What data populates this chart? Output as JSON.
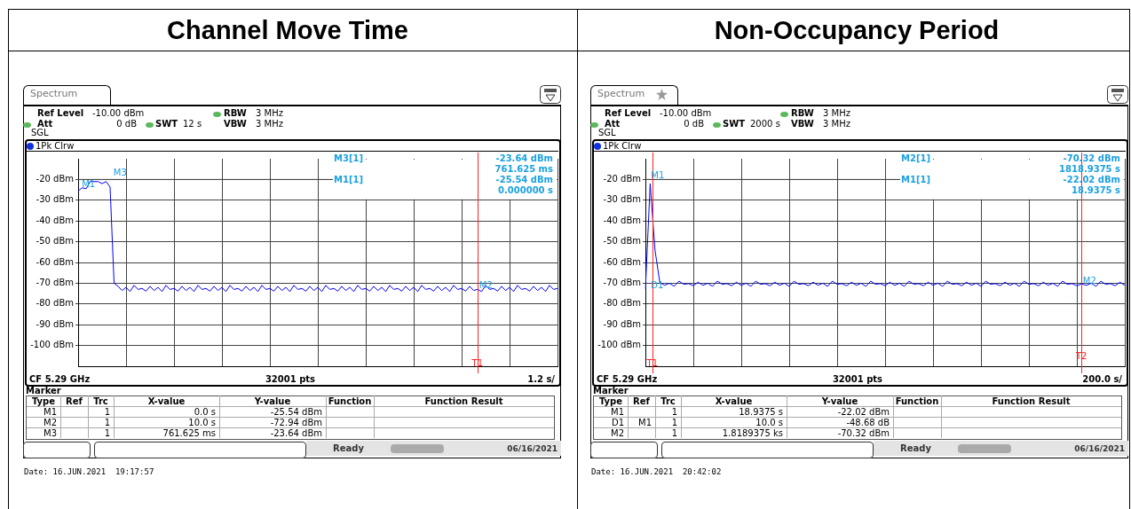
{
  "chart_data": [
    {
      "type": "line",
      "title": "Channel Move Time",
      "color": "#0000ff",
      "categories": [
        null,
        null,
        null,
        null,
        null,
        null,
        null,
        null,
        null,
        null,
        null,
        null,
        null,
        null,
        null,
        null,
        null,
        null,
        null,
        null,
        null,
        null,
        null,
        null,
        null,
        null,
        null,
        null,
        null,
        null,
        null,
        null,
        null,
        null,
        null,
        null,
        null,
        null,
        null,
        null,
        null,
        null,
        null,
        null,
        null,
        null,
        null,
        null,
        null,
        null,
        null,
        null,
        null,
        null,
        null,
        null,
        null,
        null,
        null,
        null,
        null,
        null,
        null,
        null,
        null,
        null,
        null,
        null,
        null,
        null,
        null,
        null,
        null,
        null,
        null,
        null,
        null,
        null,
        null,
        null,
        null,
        null,
        null,
        null,
        null,
        null,
        null,
        null,
        null,
        null,
        null,
        null,
        null,
        null,
        null,
        null,
        null,
        null,
        null,
        null,
        null,
        null,
        null,
        null,
        null,
        null,
        null,
        null,
        null,
        null,
        null,
        null,
        null,
        null,
        null,
        null,
        null,
        null,
        null,
        null,
        null
      ],
      "values": [
        -25.54,
        -24,
        -24.5,
        -21,
        -21,
        -21,
        -22,
        -21,
        -23.64,
        -70,
        -71.5,
        -73.5,
        -72,
        -74,
        -71,
        -73,
        -72.5,
        -73.8,
        -71.5,
        -73.5,
        -72,
        -74,
        -71,
        -73,
        -72.5,
        -73.8,
        -71.5,
        -73.5,
        -72,
        -74,
        -71,
        -73,
        -72.5,
        -73.8,
        -71.5,
        -73.5,
        -72,
        -74,
        -71,
        -73,
        -72.5,
        -73.8,
        -71.5,
        -73.5,
        -72,
        -74,
        -71,
        -73,
        -72.5,
        -73.8,
        -71.5,
        -73.5,
        -72,
        -74,
        -71,
        -73,
        -72.5,
        -73.8,
        -71.5,
        -73.5,
        -72,
        -74,
        -71,
        -73,
        -72.5,
        -73.8,
        -71.5,
        -73.5,
        -72,
        -74,
        -71,
        -73,
        -72.5,
        -73.8,
        -71.5,
        -73.5,
        -72,
        -74,
        -71,
        -73,
        -72.5,
        -73.8,
        -71.5,
        -73.5,
        -72,
        -74,
        -71,
        -73,
        -72.5,
        -73.8,
        -71.5,
        -73.5,
        -72,
        -74,
        -71,
        -73,
        -72.5,
        -73.8,
        -71.5,
        -73.5,
        -72.94,
        -74,
        -71,
        -73,
        -72.5,
        -73.8,
        -71.5,
        -73.5,
        -72,
        -74,
        -71,
        -73,
        -72.5,
        -73.8,
        -71.5,
        -73.5,
        -72,
        -74,
        -71,
        -73,
        -72.5
      ],
      "ylim": [
        -110,
        -10
      ],
      "yticks": [
        {
          "value": -20,
          "label": "-20 dBm"
        },
        {
          "value": -30,
          "label": "-30 dBm"
        },
        {
          "value": -40,
          "label": "-40 dBm"
        },
        {
          "value": -50,
          "label": "-50 dBm"
        },
        {
          "value": -60,
          "label": "-60 dBm"
        },
        {
          "value": -70,
          "label": "-70 dBm"
        },
        {
          "value": -80,
          "label": "-80 dBm"
        },
        {
          "value": -90,
          "label": "-90 dBm"
        },
        {
          "value": -100,
          "label": "-100 dBm"
        }
      ],
      "grid": true,
      "tick_labels": "y",
      "annotations": [
        "Spectrum",
        "Ref Level",
        "-10.00 dBm",
        "Att",
        "0 dB",
        "SWT",
        "12 s",
        "RBW",
        "3 MHz",
        "VBW",
        "3 MHz",
        "SGL",
        "1Pk Clrw",
        "M3[1]",
        "-23.64 dBm",
        "761.625 ms",
        "M1[1]",
        "-25.54 dBm",
        "0.000000 s",
        "CF 5.29 GHz",
        "32001 pts",
        "1.2 s/",
        "Marker",
        "Type",
        "Ref",
        "Trc",
        "X-value",
        "Y-value",
        "Function",
        "Function Result",
        "M1",
        "1",
        "0.0 s",
        "-25.54 dBm",
        "M2",
        "1",
        "10.0 s",
        "-72.94 dBm",
        "M3",
        "1",
        "761.625 ms",
        "-23.64 dBm",
        "Ready",
        "06/16/2021",
        "Date: 16.JUN.2021  19:17:57",
        "M1",
        "M2",
        "M3",
        "T1"
      ]
    },
    {
      "type": "line",
      "title": "Non-Occupancy Period",
      "color": "#0000ff",
      "categories": [
        null,
        null,
        null,
        null,
        null,
        null,
        null,
        null,
        null,
        null,
        null,
        null,
        null,
        null,
        null,
        null,
        null,
        null,
        null,
        null,
        null,
        null,
        null,
        null,
        null,
        null,
        null,
        null,
        null,
        null,
        null,
        null,
        null,
        null,
        null,
        null,
        null,
        null,
        null,
        null,
        null,
        null,
        null,
        null,
        null,
        null,
        null,
        null,
        null,
        null,
        null,
        null,
        null,
        null,
        null,
        null,
        null,
        null,
        null,
        null,
        null,
        null,
        null,
        null,
        null,
        null,
        null,
        null,
        null,
        null,
        null,
        null,
        null,
        null,
        null,
        null,
        null,
        null,
        null,
        null,
        null,
        null,
        null,
        null,
        null,
        null,
        null,
        null,
        null,
        null,
        null,
        null,
        null,
        null,
        null,
        null,
        null,
        null,
        null,
        null,
        null
      ],
      "values": [
        -73,
        -22.02,
        -54,
        -69.5,
        -71,
        -70,
        -71.5,
        -69,
        -70.5,
        -70.2,
        -71.2,
        -69.5,
        -71,
        -70,
        -71.5,
        -69,
        -70.5,
        -70.2,
        -71.2,
        -69.5,
        -71,
        -70,
        -71.5,
        -69,
        -70.5,
        -70.2,
        -71.2,
        -69.5,
        -71,
        -70,
        -71.5,
        -69,
        -70.5,
        -70.2,
        -71.2,
        -69.5,
        -71,
        -70,
        -71.5,
        -69,
        -70.5,
        -70.2,
        -71.2,
        -69.5,
        -71,
        -70,
        -71.5,
        -69,
        -70.5,
        -70.2,
        -71.2,
        -69.5,
        -71,
        -70,
        -71.5,
        -69,
        -70.5,
        -70.2,
        -71.2,
        -69.5,
        -71,
        -70,
        -71.5,
        -69,
        -70.5,
        -70.2,
        -71.2,
        -69.5,
        -71,
        -70,
        -71.5,
        -69,
        -70.5,
        -70.2,
        -71.2,
        -69.5,
        -71,
        -70,
        -71.5,
        -69,
        -70.5,
        -70.2,
        -71.2,
        -69.5,
        -71,
        -70,
        -71.5,
        -69,
        -70.5,
        -70.2,
        -71.2,
        -70.32,
        -71,
        -70,
        -71.5,
        -69,
        -70.5,
        -70.2,
        -71.2,
        -69.5,
        -71
      ],
      "ylim": [
        -110,
        -10
      ],
      "yticks": [
        {
          "value": -20,
          "label": "-20 dBm"
        },
        {
          "value": -30,
          "label": "-30 dBm"
        },
        {
          "value": -40,
          "label": "-40 dBm"
        },
        {
          "value": -50,
          "label": "-50 dBm"
        },
        {
          "value": -60,
          "label": "-60 dBm"
        },
        {
          "value": -70,
          "label": "-70 dBm"
        },
        {
          "value": -80,
          "label": "-80 dBm"
        },
        {
          "value": -90,
          "label": "-90 dBm"
        },
        {
          "value": -100,
          "label": "-100 dBm"
        }
      ],
      "grid": true,
      "tick_labels": "y",
      "annotations": [
        "Spectrum",
        "Ref Level",
        "-10.00 dBm",
        "Att",
        "0 dB",
        "SWT",
        "2000 s",
        "RBW",
        "3 MHz",
        "VBW",
        "3 MHz",
        "SGL",
        "1Pk Clrw",
        "M2[1]",
        "-70.32 dBm",
        "1818.9375 s",
        "M1[1]",
        "-22.02 dBm",
        "18.9375 s",
        "CF 5.29 GHz",
        "32001 pts",
        "200.0 s/",
        "Marker",
        "Type",
        "Ref",
        "Trc",
        "X-value",
        "Y-value",
        "Function",
        "Function Result",
        "M1",
        "1",
        "18.9375 s",
        "-22.02 dBm",
        "D1",
        "M1",
        "1",
        "10.0 s",
        "-48.68 dB",
        "M2",
        "1",
        "1.8189375 ks",
        "-70.32 dBm",
        "Ready",
        "06/16/2021",
        "Date: 16.JUN.2021  20:42:02",
        "M1",
        "D1",
        "M2",
        "T1",
        "T2"
      ]
    }
  ]
}
